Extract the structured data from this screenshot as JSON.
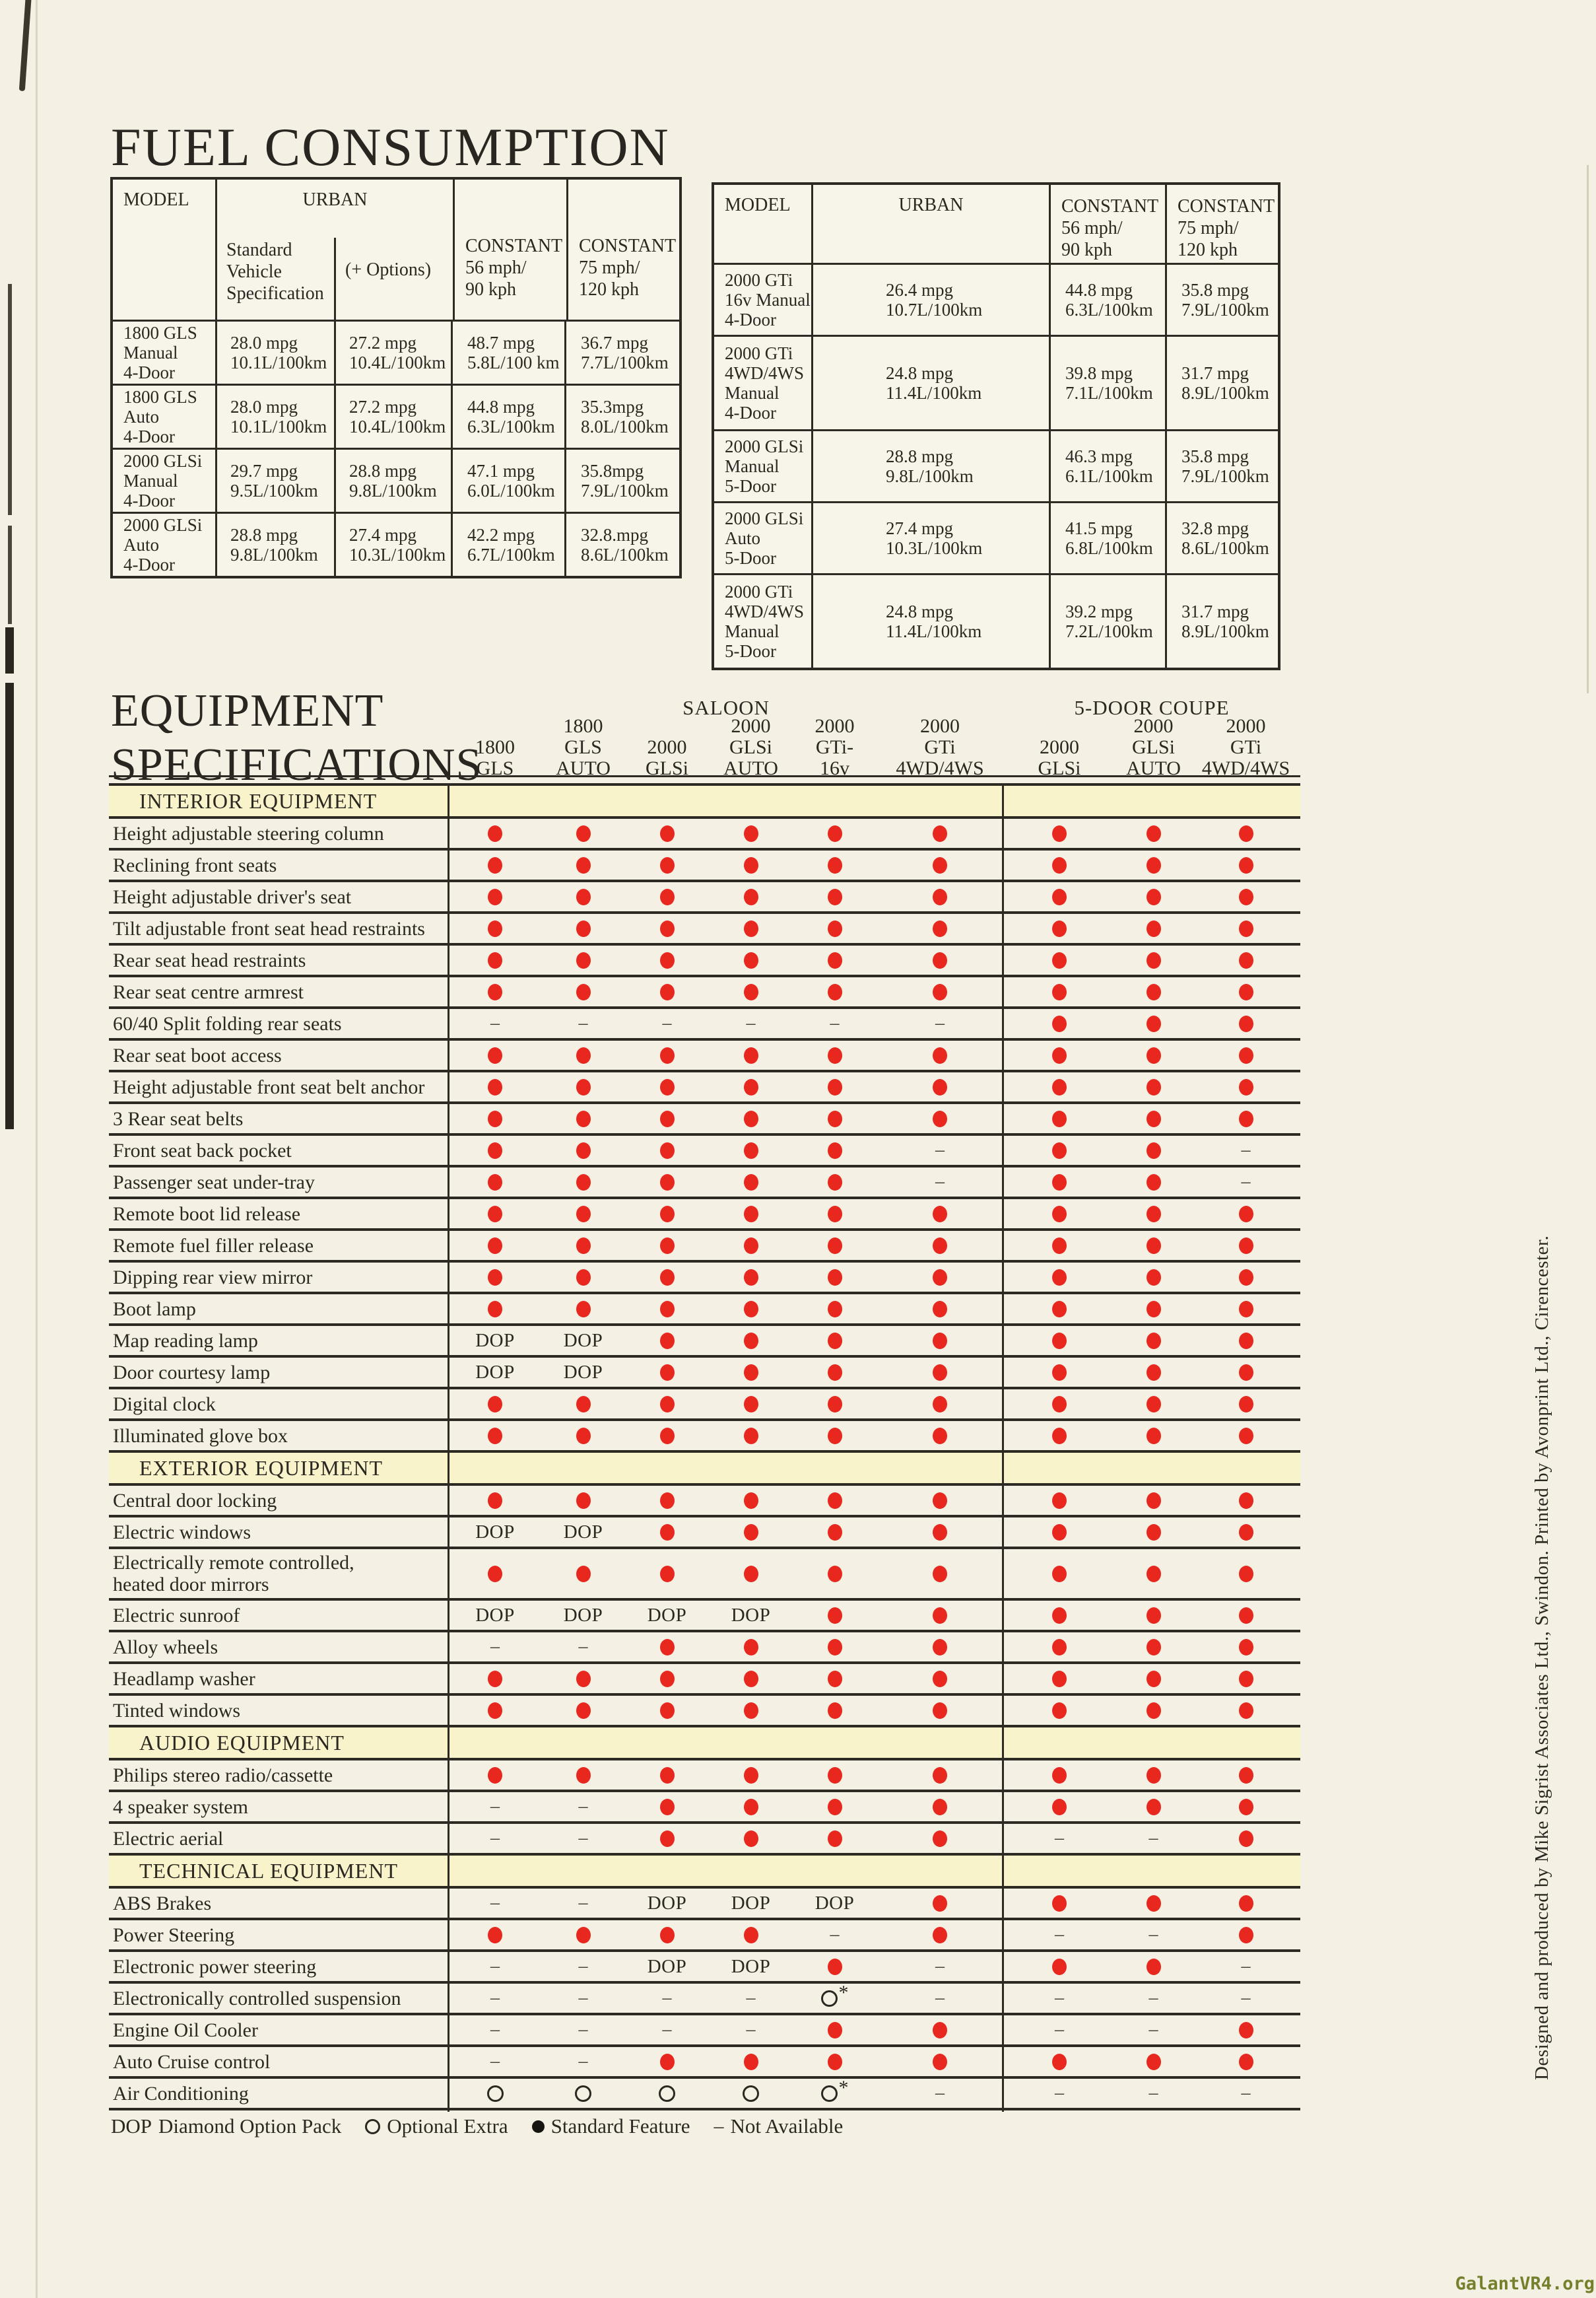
{
  "fuel": {
    "title": "FUEL CONSUMPTION",
    "left": {
      "headers": {
        "model": "MODEL",
        "urban": "URBAN",
        "urban_sub1": [
          "Standard",
          "Vehicle",
          "Specification"
        ],
        "urban_sub2": "(+ Options)",
        "constant56": [
          "CONSTANT",
          "56 mph/",
          "90 kph"
        ],
        "constant75": [
          "CONSTANT",
          "75 mph/",
          "120 kph"
        ]
      },
      "rows": [
        {
          "model": [
            "1800 GLS",
            "Manual",
            "4-Door"
          ],
          "urban_std": [
            "28.0 mpg",
            "10.1L/100km"
          ],
          "urban_opt": [
            "27.2 mpg",
            "10.4L/100km"
          ],
          "c56": [
            "48.7 mpg",
            "5.8L/100 km"
          ],
          "c75": [
            "36.7 mpg",
            "7.7L/100km"
          ]
        },
        {
          "model": [
            "1800 GLS",
            "Auto",
            "4-Door"
          ],
          "urban_std": [
            "28.0 mpg",
            "10.1L/100km"
          ],
          "urban_opt": [
            "27.2 mpg",
            "10.4L/100km"
          ],
          "c56": [
            "44.8 mpg",
            "6.3L/100km"
          ],
          "c75": [
            "35.3mpg",
            "8.0L/100km"
          ]
        },
        {
          "model": [
            "2000 GLSi",
            "Manual",
            "4-Door"
          ],
          "urban_std": [
            "29.7 mpg",
            "9.5L/100km"
          ],
          "urban_opt": [
            "28.8 mpg",
            "9.8L/100km"
          ],
          "c56": [
            "47.1 mpg",
            "6.0L/100km"
          ],
          "c75": [
            "35.8mpg",
            "7.9L/100km"
          ]
        },
        {
          "model": [
            "2000 GLSi",
            "Auto",
            "4-Door"
          ],
          "urban_std": [
            "28.8 mpg",
            "9.8L/100km"
          ],
          "urban_opt": [
            "27.4 mpg",
            "10.3L/100km"
          ],
          "c56": [
            "42.2 mpg",
            "6.7L/100km"
          ],
          "c75": [
            "32.8.mpg",
            "8.6L/100km"
          ]
        }
      ]
    },
    "right": {
      "headers": {
        "model": "MODEL",
        "urban": "URBAN",
        "constant56": [
          "CONSTANT",
          "56 mph/",
          "90 kph"
        ],
        "constant75": [
          "CONSTANT",
          "75 mph/",
          "120 kph"
        ]
      },
      "rows": [
        {
          "model": [
            "2000 GTi",
            "16v Manual",
            "4-Door"
          ],
          "urban": [
            "26.4 mpg",
            "10.7L/100km"
          ],
          "c56": [
            "44.8 mpg",
            "6.3L/100km"
          ],
          "c75": [
            "35.8 mpg",
            "7.9L/100km"
          ]
        },
        {
          "model": [
            "2000 GTi",
            "4WD/4WS",
            "Manual",
            "4-Door"
          ],
          "urban": [
            "24.8 mpg",
            "11.4L/100km"
          ],
          "c56": [
            "39.8 mpg",
            "7.1L/100km"
          ],
          "c75": [
            "31.7 mpg",
            "8.9L/100km"
          ]
        },
        {
          "model": [
            "2000 GLSi",
            "Manual",
            "5-Door"
          ],
          "urban": [
            "28.8 mpg",
            "9.8L/100km"
          ],
          "c56": [
            "46.3 mpg",
            "6.1L/100km"
          ],
          "c75": [
            "35.8 mpg",
            "7.9L/100km"
          ]
        },
        {
          "model": [
            "2000 GLSi",
            "Auto",
            "5-Door"
          ],
          "urban": [
            "27.4 mpg",
            "10.3L/100km"
          ],
          "c56": [
            "41.5 mpg",
            "6.8L/100km"
          ],
          "c75": [
            "32.8 mpg",
            "8.6L/100km"
          ]
        },
        {
          "model": [
            "2000 GTi",
            "4WD/4WS",
            "Manual",
            "5-Door"
          ],
          "urban": [
            "24.8 mpg",
            "11.4L/100km"
          ],
          "c56": [
            "39.2 mpg",
            "7.2L/100km"
          ],
          "c75": [
            "31.7 mpg",
            "8.9L/100km"
          ]
        }
      ]
    }
  },
  "equipment": {
    "title_line1": "EQUIPMENT",
    "title_line2": "SPECIFICATIONS",
    "groups": [
      "SALOON",
      "5-DOOR COUPE"
    ],
    "columns": [
      {
        "lines": [
          "1800",
          "GLS"
        ]
      },
      {
        "lines": [
          "1800",
          "GLS",
          "AUTO"
        ]
      },
      {
        "lines": [
          "2000",
          "GLSi"
        ]
      },
      {
        "lines": [
          "2000",
          "GLSi",
          "AUTO"
        ]
      },
      {
        "lines": [
          "2000",
          "GTi-",
          "16v"
        ]
      },
      {
        "lines": [
          "2000",
          "GTi",
          "4WD/4WS"
        ]
      },
      {
        "lines": [
          "2000",
          "GLSi"
        ]
      },
      {
        "lines": [
          "2000",
          "GLSi",
          "AUTO"
        ]
      },
      {
        "lines": [
          "2000",
          "GTi",
          "4WD/4WS"
        ]
      }
    ],
    "symbols": {
      "dop_label": "DOP",
      "dash": "–",
      "asterisk": "*",
      "standard": "●",
      "optional": "○"
    },
    "sections": [
      {
        "title": "INTERIOR EQUIPMENT",
        "rows": [
          {
            "label": "Height adjustable steering column",
            "cells": [
              "S",
              "S",
              "S",
              "S",
              "S",
              "S",
              "S",
              "S",
              "S"
            ]
          },
          {
            "label": "Reclining front seats",
            "cells": [
              "S",
              "S",
              "S",
              "S",
              "S",
              "S",
              "S",
              "S",
              "S"
            ]
          },
          {
            "label": "Height adjustable driver's seat",
            "cells": [
              "S",
              "S",
              "S",
              "S",
              "S",
              "S",
              "S",
              "S",
              "S"
            ]
          },
          {
            "label": "Tilt adjustable front seat head restraints",
            "cells": [
              "S",
              "S",
              "S",
              "S",
              "S",
              "S",
              "S",
              "S",
              "S"
            ]
          },
          {
            "label": "Rear seat head restraints",
            "cells": [
              "S",
              "S",
              "S",
              "S",
              "S",
              "S",
              "S",
              "S",
              "S"
            ]
          },
          {
            "label": "Rear seat centre armrest",
            "cells": [
              "S",
              "S",
              "S",
              "S",
              "S",
              "S",
              "S",
              "S",
              "S"
            ]
          },
          {
            "label": "60/40 Split folding rear seats",
            "cells": [
              "N",
              "N",
              "N",
              "N",
              "N",
              "N",
              "S",
              "S",
              "S"
            ]
          },
          {
            "label": "Rear seat boot access",
            "cells": [
              "S",
              "S",
              "S",
              "S",
              "S",
              "S",
              "S",
              "S",
              "S"
            ]
          },
          {
            "label": "Height adjustable front seat belt anchor",
            "cells": [
              "S",
              "S",
              "S",
              "S",
              "S",
              "S",
              "S",
              "S",
              "S"
            ]
          },
          {
            "label": "3 Rear seat belts",
            "cells": [
              "S",
              "S",
              "S",
              "S",
              "S",
              "S",
              "S",
              "S",
              "S"
            ]
          },
          {
            "label": "Front seat back pocket",
            "cells": [
              "S",
              "S",
              "S",
              "S",
              "S",
              "N",
              "S",
              "S",
              "N"
            ]
          },
          {
            "label": "Passenger seat under-tray",
            "cells": [
              "S",
              "S",
              "S",
              "S",
              "S",
              "N",
              "S",
              "S",
              "N"
            ]
          },
          {
            "label": "Remote boot lid release",
            "cells": [
              "S",
              "S",
              "S",
              "S",
              "S",
              "S",
              "S",
              "S",
              "S"
            ]
          },
          {
            "label": "Remote fuel filler release",
            "cells": [
              "S",
              "S",
              "S",
              "S",
              "S",
              "S",
              "S",
              "S",
              "S"
            ]
          },
          {
            "label": "Dipping rear view mirror",
            "cells": [
              "S",
              "S",
              "S",
              "S",
              "S",
              "S",
              "S",
              "S",
              "S"
            ]
          },
          {
            "label": "Boot lamp",
            "cells": [
              "S",
              "S",
              "S",
              "S",
              "S",
              "S",
              "S",
              "S",
              "S"
            ]
          },
          {
            "label": "Map reading lamp",
            "cells": [
              "D",
              "D",
              "S",
              "S",
              "S",
              "S",
              "S",
              "S",
              "S"
            ]
          },
          {
            "label": "Door courtesy lamp",
            "cells": [
              "D",
              "D",
              "S",
              "S",
              "S",
              "S",
              "S",
              "S",
              "S"
            ]
          },
          {
            "label": "Digital clock",
            "cells": [
              "S",
              "S",
              "S",
              "S",
              "S",
              "S",
              "S",
              "S",
              "S"
            ]
          },
          {
            "label": "Illuminated glove box",
            "cells": [
              "S",
              "S",
              "S",
              "S",
              "S",
              "S",
              "S",
              "S",
              "S"
            ]
          }
        ]
      },
      {
        "title": "EXTERIOR EQUIPMENT",
        "rows": [
          {
            "label": "Central door locking",
            "cells": [
              "S",
              "S",
              "S",
              "S",
              "S",
              "S",
              "S",
              "S",
              "S"
            ]
          },
          {
            "label": "Electric windows",
            "cells": [
              "D",
              "D",
              "S",
              "S",
              "S",
              "S",
              "S",
              "S",
              "S"
            ]
          },
          {
            "label": [
              "Electrically remote controlled,",
              "heated door mirrors"
            ],
            "cells": [
              "S",
              "S",
              "S",
              "S",
              "S",
              "S",
              "S",
              "S",
              "S"
            ]
          },
          {
            "label": "Electric sunroof",
            "cells": [
              "D",
              "D",
              "D",
              "D",
              "S",
              "S",
              "S",
              "S",
              "S"
            ]
          },
          {
            "label": "Alloy wheels",
            "cells": [
              "N",
              "N",
              "S",
              "S",
              "S",
              "S",
              "S",
              "S",
              "S"
            ]
          },
          {
            "label": "Headlamp washer",
            "cells": [
              "S",
              "S",
              "S",
              "S",
              "S",
              "S",
              "S",
              "S",
              "S"
            ]
          },
          {
            "label": "Tinted windows",
            "cells": [
              "S",
              "S",
              "S",
              "S",
              "S",
              "S",
              "S",
              "S",
              "S"
            ]
          }
        ]
      },
      {
        "title": "AUDIO EQUIPMENT",
        "rows": [
          {
            "label": "Philips stereo radio/cassette",
            "cells": [
              "S",
              "S",
              "S",
              "S",
              "S",
              "S",
              "S",
              "S",
              "S"
            ]
          },
          {
            "label": "4 speaker system",
            "cells": [
              "N",
              "N",
              "S",
              "S",
              "S",
              "S",
              "S",
              "S",
              "S"
            ]
          },
          {
            "label": "Electric aerial",
            "cells": [
              "N",
              "N",
              "S",
              "S",
              "S",
              "S",
              "N",
              "N",
              "S"
            ]
          }
        ]
      },
      {
        "title": "TECHNICAL EQUIPMENT",
        "rows": [
          {
            "label": "ABS Brakes",
            "cells": [
              "N",
              "N",
              "D",
              "D",
              "D",
              "S",
              "S",
              "S",
              "S"
            ]
          },
          {
            "label": "Power Steering",
            "cells": [
              "S",
              "S",
              "S",
              "S",
              "N",
              "S",
              "N",
              "N",
              "S"
            ]
          },
          {
            "label": "Electronic power steering",
            "cells": [
              "N",
              "N",
              "D",
              "D",
              "S",
              "N",
              "S",
              "S",
              "N"
            ]
          },
          {
            "label": "Electronically controlled suspension",
            "cells": [
              "N",
              "N",
              "N",
              "N",
              "OX",
              "N",
              "N",
              "N",
              "N"
            ]
          },
          {
            "label": "Engine Oil Cooler",
            "cells": [
              "N",
              "N",
              "N",
              "N",
              "S",
              "S",
              "N",
              "N",
              "S"
            ]
          },
          {
            "label": "Auto Cruise control",
            "cells": [
              "N",
              "N",
              "S",
              "S",
              "S",
              "S",
              "S",
              "S",
              "S"
            ]
          },
          {
            "label": "Air Conditioning",
            "cells": [
              "O",
              "O",
              "O",
              "O",
              "OX",
              "N",
              "N",
              "N",
              "N"
            ]
          }
        ]
      }
    ],
    "legend": [
      {
        "marker": "D",
        "label": "Diamond Option Pack"
      },
      {
        "marker": "O",
        "label": "Optional Extra"
      },
      {
        "marker": "SB",
        "label": "Standard Feature"
      },
      {
        "marker": "N",
        "label": "Not Available"
      }
    ]
  },
  "credit": "Designed and produced by Mike Sigrist Associates Ltd., Swindon. Printed by Avonprint Ltd., Cirencester.",
  "watermark": "GalantVR4.org"
}
